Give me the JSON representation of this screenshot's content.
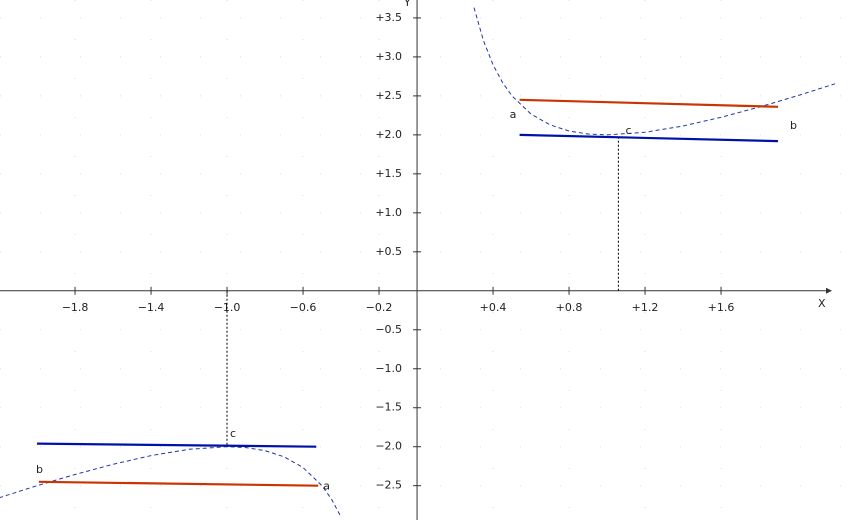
{
  "chart_data": {
    "type": "line",
    "x_label": "X",
    "y_label": "Y",
    "xlim": [
      -2.195,
      2.284
    ],
    "ylim": [
      -2.94,
      3.73
    ],
    "grid": true,
    "xticks": [
      {
        "value": -1.8,
        "label": "−1.8"
      },
      {
        "value": -1.4,
        "label": "−1.4"
      },
      {
        "value": -1.0,
        "label": "−1.0"
      },
      {
        "value": -0.6,
        "label": "−0.6"
      },
      {
        "value": -0.2,
        "label": "−0.2"
      },
      {
        "value": 0.4,
        "label": "+0.4"
      },
      {
        "value": 0.8,
        "label": "+0.8"
      },
      {
        "value": 1.2,
        "label": "+1.2"
      },
      {
        "value": 1.6,
        "label": "+1.6"
      }
    ],
    "yticks": [
      {
        "value": 3.5,
        "label": "+3.5"
      },
      {
        "value": 3.0,
        "label": "+3.0"
      },
      {
        "value": 2.5,
        "label": "+2.5"
      },
      {
        "value": 2.0,
        "label": "+2.0"
      },
      {
        "value": 1.5,
        "label": "+1.5"
      },
      {
        "value": 1.0,
        "label": "+1.0"
      },
      {
        "value": 0.5,
        "label": "+0.5"
      },
      {
        "value": -0.5,
        "label": "−0.5"
      },
      {
        "value": -1.0,
        "label": "−1.0"
      },
      {
        "value": -1.5,
        "label": "−1.5"
      },
      {
        "value": -2.0,
        "label": "−2.0"
      },
      {
        "value": -2.5,
        "label": "−2.5"
      }
    ],
    "series": [
      {
        "color": "#2233aa",
        "style": "dashed",
        "x": [
          -2.2,
          -2.0,
          -1.8,
          -1.6,
          -1.4,
          -1.2,
          -1.0,
          -0.9,
          -0.8,
          -0.7,
          -0.6,
          -0.5,
          -0.45,
          -0.4,
          0,
          0.3,
          0.35,
          0.4,
          0.45,
          0.5,
          0.6,
          0.7,
          0.8,
          0.9,
          1.0,
          1.2,
          1.4,
          1.6,
          1.8,
          2.0,
          2.2
        ],
        "values": [
          -2.655,
          -2.5,
          -2.356,
          -2.225,
          -2.114,
          -2.033,
          -2.0,
          -2.011,
          -2.05,
          -2.129,
          -2.267,
          -2.5,
          -2.672,
          -2.9,
          null,
          3.633,
          3.207,
          2.9,
          2.672,
          2.5,
          2.267,
          2.129,
          2.05,
          2.011,
          2.0,
          2.033,
          2.114,
          2.225,
          2.356,
          2.5,
          2.655
        ]
      },
      {
        "color": "#cc3300",
        "style": "solid",
        "x": [
          0.54,
          1.9
        ],
        "values": [
          2.45,
          2.36
        ]
      },
      {
        "color": "#0011aa",
        "style": "solid",
        "x": [
          0.54,
          1.9
        ],
        "values": [
          2.0,
          1.92
        ]
      },
      {
        "color": "#cc3300",
        "style": "solid",
        "x": [
          -1.99,
          -0.52
        ],
        "values": [
          -2.45,
          -2.5
        ]
      },
      {
        "color": "#0011aa",
        "style": "solid",
        "x": [
          -2.0,
          -0.53
        ],
        "values": [
          -1.96,
          -2.0
        ]
      },
      {
        "color": "#000000",
        "style": "dotted",
        "x": [
          1.06,
          1.06
        ],
        "values": [
          0,
          1.97
        ]
      },
      {
        "color": "#000000",
        "style": "dotted",
        "x": [
          -1.0,
          -1.0
        ],
        "values": [
          0,
          -1.98
        ]
      }
    ],
    "points": [
      {
        "label": "a",
        "x": 0.54,
        "y": 2.45
      },
      {
        "label": "b",
        "x": 1.9,
        "y": 2.36
      },
      {
        "label": "c",
        "x": 1.06,
        "y": 1.97
      },
      {
        "label": "b",
        "x": -1.99,
        "y": -2.45
      },
      {
        "label": "a",
        "x": -0.52,
        "y": -2.5
      },
      {
        "label": "c",
        "x": -1.0,
        "y": -1.98
      }
    ]
  }
}
